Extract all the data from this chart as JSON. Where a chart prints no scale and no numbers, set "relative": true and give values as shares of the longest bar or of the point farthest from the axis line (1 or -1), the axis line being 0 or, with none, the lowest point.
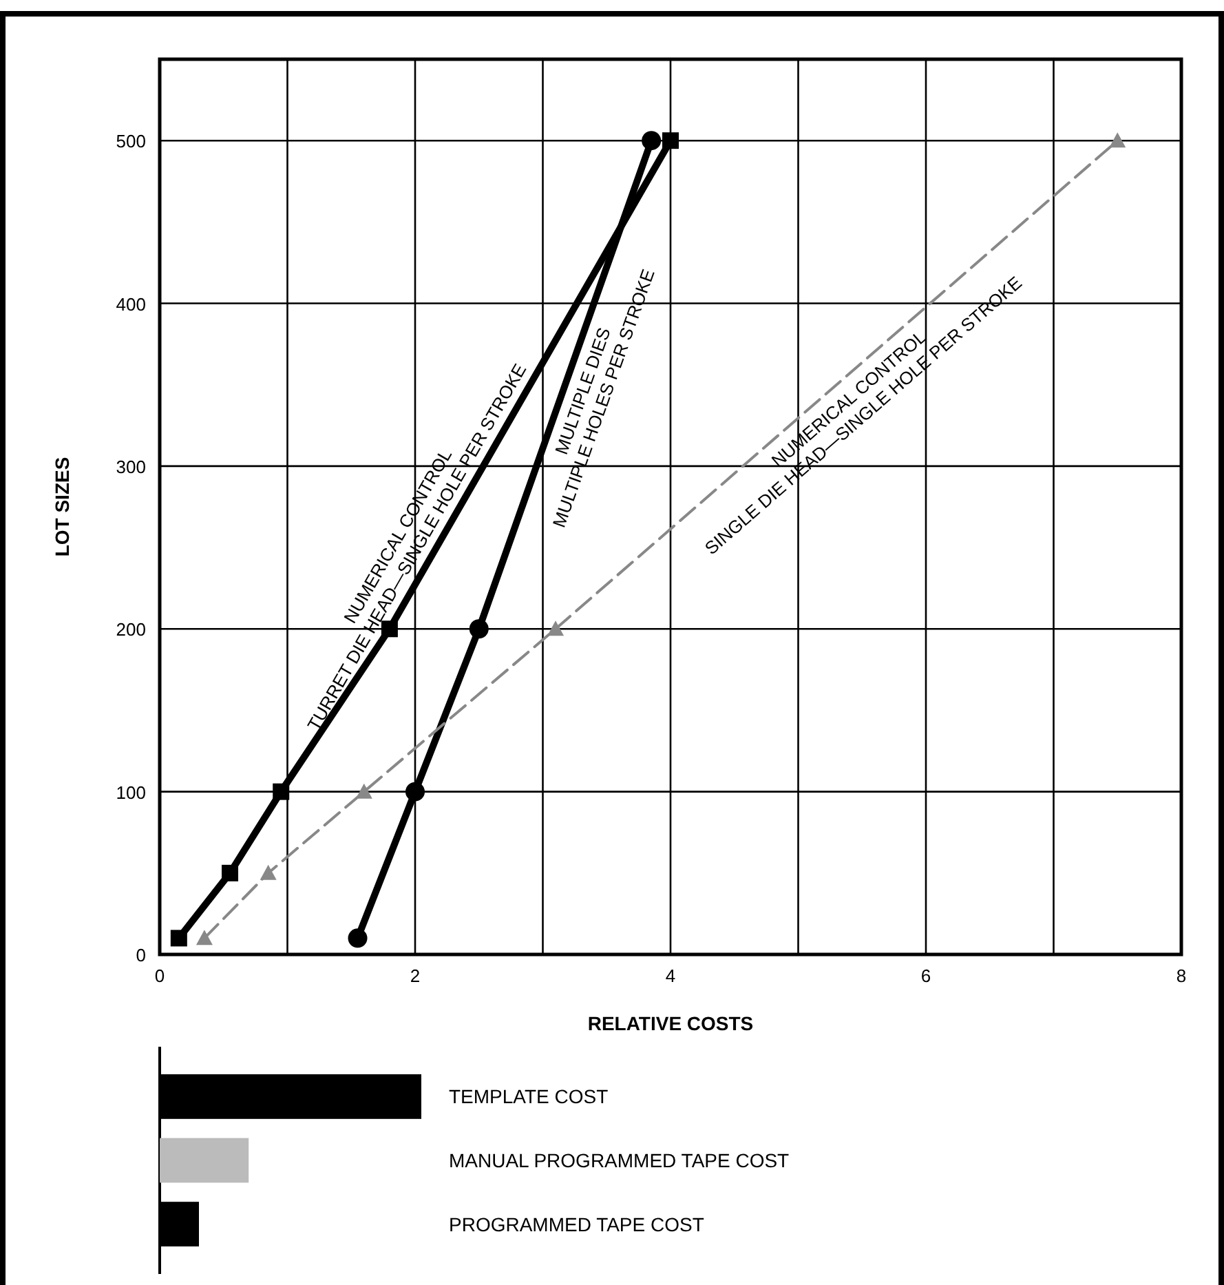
{
  "chart_data": [
    {
      "type": "line",
      "xlabel": "RELATIVE COSTS",
      "ylabel": "LOT SIZES",
      "xlim": [
        0,
        8
      ],
      "ylim": [
        0,
        550
      ],
      "xticks": [
        0,
        {
          "value": 1,
          "label": null
        },
        2,
        {
          "value": 3,
          "label": null
        },
        4,
        {
          "value": 5,
          "label": null
        },
        6,
        {
          "value": 7,
          "label": null
        },
        8
      ],
      "yticks": [
        0,
        100,
        200,
        300,
        400,
        500
      ],
      "grid": true,
      "series": [
        {
          "name": "NUMERICAL CONTROL\nTURRET DIE HEAD—SINGLE HOLE PER STROKE",
          "color": "#000000",
          "marker": "square",
          "line_style": "solid",
          "x": [
            0.15,
            0.55,
            0.95,
            1.8,
            4.0
          ],
          "values": [
            10,
            50,
            100,
            200,
            500
          ]
        },
        {
          "name": "MULTIPLE DIES\nMULTIPLE HOLES PER STROKE",
          "color": "#000000",
          "marker": "circle",
          "line_style": "solid",
          "x": [
            1.55,
            2.0,
            2.5,
            3.85
          ],
          "values": [
            10,
            100,
            200,
            500
          ]
        },
        {
          "name": "NUMERICAL CONTROL\nSINGLE DIE HEAD—SINGLE HOLE PER STROKE",
          "color": "#888888",
          "marker": "triangle",
          "line_style": "dashed",
          "x": [
            0.35,
            0.85,
            1.6,
            3.1,
            7.5
          ],
          "values": [
            10,
            50,
            100,
            200,
            500
          ]
        }
      ]
    },
    {
      "type": "bar",
      "orientation": "horizontal",
      "categories": [
        "TEMPLATE COST",
        "MANUAL PROGRAMMED TAPE  COST",
        "PROGRAMMED TAPE  COST"
      ],
      "values": [
        1,
        0.34,
        0.15
      ],
      "relative": true,
      "colors": [
        "#000000",
        "#bbbbbb",
        "#000000"
      ]
    }
  ]
}
